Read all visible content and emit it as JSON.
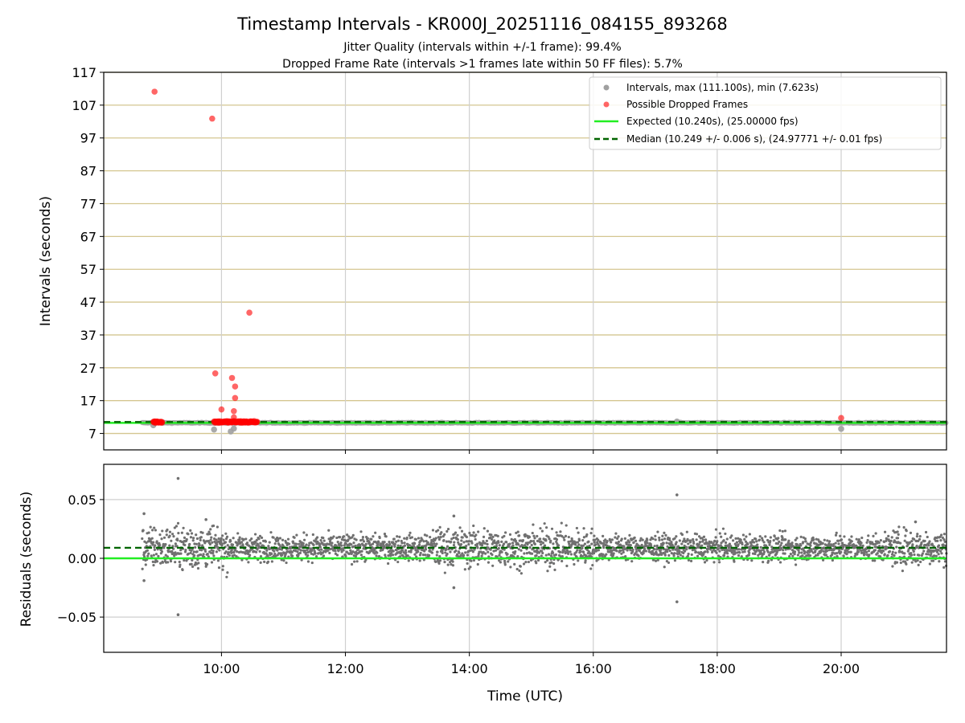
{
  "chart_data": [
    {
      "type": "scatter",
      "title": "Timestamp Intervals - KR000J_20251116_084155_893268",
      "subtitle_lines": [
        "Jitter Quality (intervals within +/-1 frame): 99.4%",
        "Dropped Frame Rate (intervals >1 frames late within 50 FF files): 5.7%"
      ],
      "xlabel": "",
      "ylabel": "Intervals (seconds)",
      "xlim_hours": [
        8.1,
        21.7
      ],
      "ylim": [
        2,
        117
      ],
      "yticks": [
        7,
        17,
        27,
        37,
        47,
        57,
        67,
        77,
        87,
        97,
        107,
        117
      ],
      "ytick_labels": [
        "7",
        "17",
        "27",
        "37",
        "47",
        "57",
        "67",
        "77",
        "87",
        "97",
        "107",
        "117"
      ],
      "grid": true,
      "legend_position": "top-right",
      "legend": [
        "Intervals, max (111.100s), min (7.623s)",
        "Possible Dropped Frames",
        "Expected (10.240s), (25.00000 fps)",
        "Median (10.249 +/- 0.006 s), (24.97771 +/- 0.01 fps)"
      ],
      "series": [
        {
          "name": "Intervals, max (111.100s), min (7.623s)",
          "color": "#a0a0a0",
          "baseline_value": 10.24,
          "x_range_hours": [
            8.72,
            21.7
          ],
          "outliers": [
            {
              "x": 8.9,
              "y": 9.5
            },
            {
              "x": 9.88,
              "y": 8.2
            },
            {
              "x": 10.15,
              "y": 7.6
            },
            {
              "x": 10.2,
              "y": 8.5
            },
            {
              "x": 17.35,
              "y": 10.6
            },
            {
              "x": 20.0,
              "y": 8.4
            }
          ]
        },
        {
          "name": "Possible Dropped Frames",
          "color": "#ff0000",
          "points": [
            {
              "x": 8.92,
              "y": 111.1
            },
            {
              "x": 9.85,
              "y": 102.9
            },
            {
              "x": 9.9,
              "y": 25.3
            },
            {
              "x": 10.0,
              "y": 14.3
            },
            {
              "x": 10.17,
              "y": 23.9
            },
            {
              "x": 10.22,
              "y": 21.3
            },
            {
              "x": 10.22,
              "y": 17.8
            },
            {
              "x": 10.2,
              "y": 13.8
            },
            {
              "x": 10.2,
              "y": 11.9
            },
            {
              "x": 10.45,
              "y": 43.8
            },
            {
              "x": 20.0,
              "y": 11.7
            }
          ],
          "clusters": [
            {
              "x_start": 8.9,
              "x_end": 9.05,
              "y": 10.5
            },
            {
              "x_start": 9.88,
              "x_end": 10.58,
              "y": 10.5
            }
          ]
        },
        {
          "name": "Expected (10.240s), (25.00000 fps)",
          "type": "hline",
          "value": 10.24,
          "color": "#22ee22",
          "style": "solid"
        },
        {
          "name": "Median (10.249 +/- 0.006 s), (24.97771 +/- 0.01 fps)",
          "type": "hline",
          "value": 10.249,
          "color": "#006400",
          "style": "dashed"
        }
      ]
    },
    {
      "type": "scatter",
      "title": "",
      "xlabel": "Time (UTC)",
      "ylabel": "Residuals (seconds)",
      "xlim_hours": [
        8.1,
        21.7
      ],
      "ylim": [
        -0.08,
        0.08
      ],
      "xticks_hours": [
        10,
        12,
        14,
        16,
        18,
        20
      ],
      "xtick_labels": [
        "10:00",
        "12:00",
        "14:00",
        "16:00",
        "18:00",
        "20:00"
      ],
      "yticks": [
        0.05,
        0.0,
        -0.05
      ],
      "ytick_labels": [
        "0.05",
        "0.00",
        "−0.05"
      ],
      "grid": true,
      "series": [
        {
          "name": "Residuals",
          "color": "#707070",
          "x_range_hours": [
            8.72,
            21.7
          ],
          "center": 0.009,
          "spread": 0.009,
          "outliers": [
            {
              "x": 8.75,
              "y": 0.038
            },
            {
              "x": 8.75,
              "y": -0.019
            },
            {
              "x": 9.3,
              "y": 0.068
            },
            {
              "x": 9.3,
              "y": -0.048
            },
            {
              "x": 9.75,
              "y": 0.033
            },
            {
              "x": 13.75,
              "y": 0.036
            },
            {
              "x": 13.75,
              "y": -0.025
            },
            {
              "x": 17.35,
              "y": 0.054
            },
            {
              "x": 17.35,
              "y": -0.037
            },
            {
              "x": 21.2,
              "y": 0.031
            }
          ]
        },
        {
          "name": "Expected",
          "type": "hline",
          "value": 0.0,
          "color": "#22ee22",
          "style": "solid"
        },
        {
          "name": "Median",
          "type": "hline",
          "value": 0.009,
          "color": "#006400",
          "style": "dashed"
        }
      ]
    }
  ]
}
